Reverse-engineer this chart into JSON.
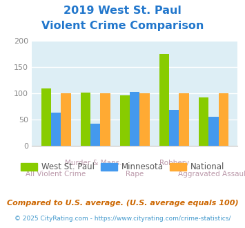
{
  "title_line1": "2019 West St. Paul",
  "title_line2": "Violent Crime Comparison",
  "title_color": "#2277cc",
  "categories": [
    "All Violent Crime",
    "Murder & Mans...",
    "Rape",
    "Robbery",
    "Aggravated Assault"
  ],
  "cat_top": [
    "",
    "Murder & Mans...",
    "",
    "Robbery",
    ""
  ],
  "cat_bot": [
    "All Violent Crime",
    "",
    "Rape",
    "",
    "Aggravated Assault"
  ],
  "west_st_paul": [
    110,
    102,
    97,
    175,
    93
  ],
  "minnesota": [
    63,
    43,
    103,
    69,
    55
  ],
  "national": [
    100,
    100,
    100,
    100,
    100
  ],
  "color_wsp": "#88cc00",
  "color_mn": "#4499ee",
  "color_nat": "#ffaa33",
  "bg_color": "#ddeef5",
  "ylim": [
    0,
    200
  ],
  "yticks": [
    0,
    50,
    100,
    150,
    200
  ],
  "legend_labels": [
    "West St. Paul",
    "Minnesota",
    "National"
  ],
  "footnote1": "Compared to U.S. average. (U.S. average equals 100)",
  "footnote2": "© 2025 CityRating.com - https://www.cityrating.com/crime-statistics/",
  "footnote1_color": "#cc6600",
  "footnote2_color": "#4499cc",
  "label_color": "#bb99aa"
}
